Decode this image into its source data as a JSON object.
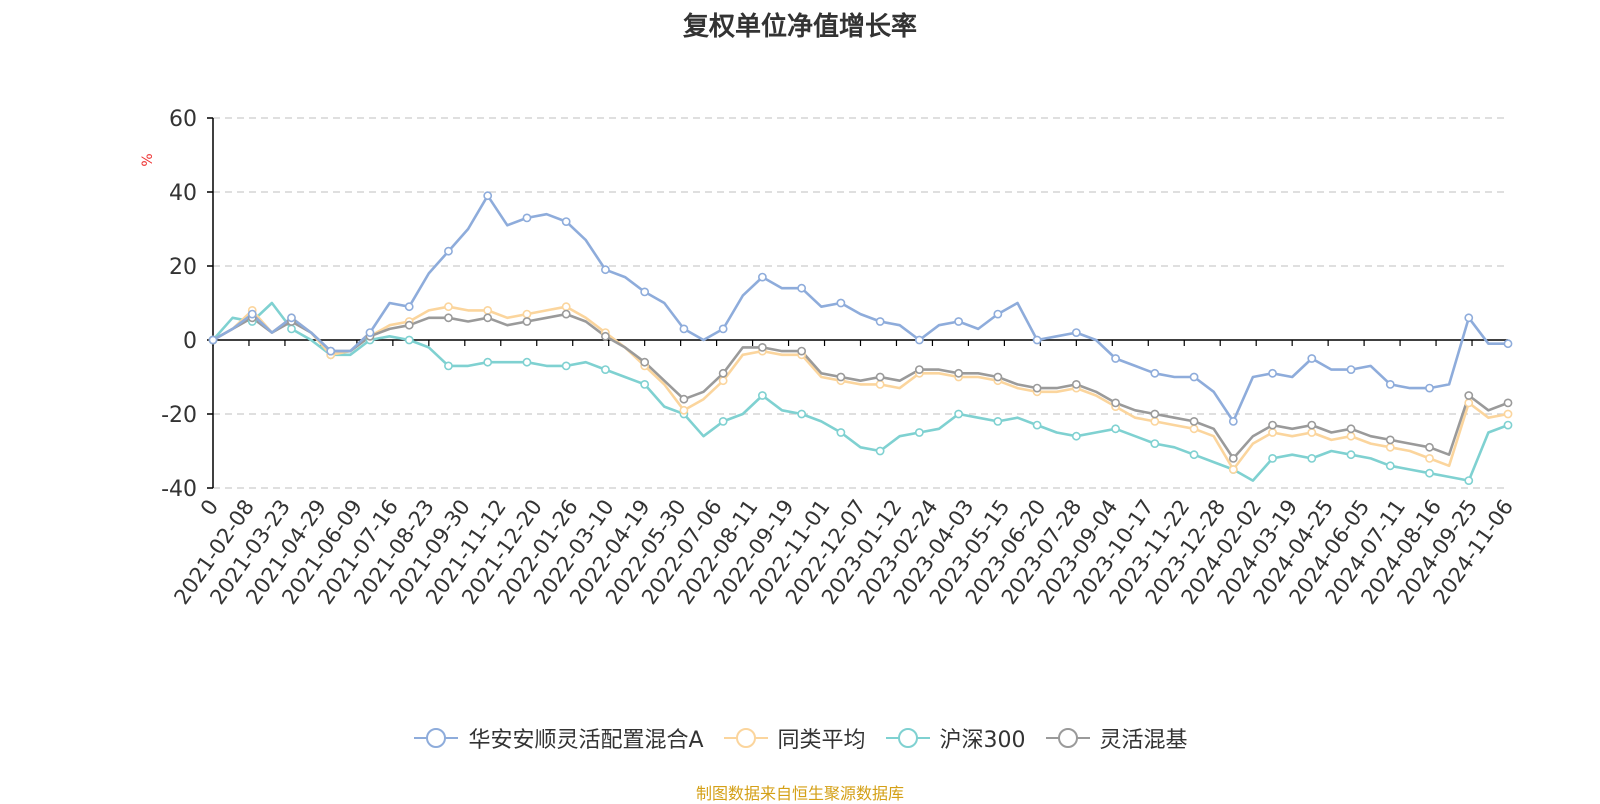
{
  "title": "复权单位净值增长率",
  "source_note": "制图数据来自恒生聚源数据库",
  "colors": {
    "fund": "#8eacdb",
    "peer": "#fbd59d",
    "index": "#7fd1d1",
    "category": "#9a9a9a",
    "unit": "#ee3333",
    "source": "#d4a017",
    "grid": "#cccccc",
    "axis": "#000000"
  },
  "chart_data": {
    "type": "line",
    "title": "复权单位净值增长率",
    "ylabel": "%",
    "xlabel": "",
    "ylim": [
      -40,
      60
    ],
    "yticks": [
      -40,
      -20,
      0,
      20,
      40,
      60
    ],
    "grid": true,
    "legend_position": "bottom-center",
    "x_tick_labels": [
      "0",
      "2021-02-08",
      "2021-03-23",
      "2021-04-29",
      "2021-06-09",
      "2021-07-16",
      "2021-08-23",
      "2021-09-30",
      "2021-11-12",
      "2021-12-20",
      "2022-01-26",
      "2022-03-10",
      "2022-04-19",
      "2022-05-30",
      "2022-07-06",
      "2022-08-11",
      "2022-09-19",
      "2022-11-01",
      "2022-12-07",
      "2023-01-12",
      "2023-02-24",
      "2023-04-03",
      "2023-05-15",
      "2023-06-20",
      "2023-07-28",
      "2023-09-04",
      "2023-10-17",
      "2023-11-22",
      "2023-12-28",
      "2024-02-02",
      "2024-03-19",
      "2024-04-25",
      "2024-06-05",
      "2024-07-11",
      "2024-08-16",
      "2024-09-25",
      "2024-11-06"
    ],
    "series": [
      {
        "name": "华安安顺灵活配置混合A",
        "color_key": "fund",
        "values": [
          0,
          3,
          7,
          2,
          6,
          2,
          -3,
          -3,
          2,
          10,
          9,
          18,
          24,
          30,
          39,
          31,
          33,
          34,
          32,
          27,
          19,
          17,
          13,
          10,
          3,
          0,
          3,
          12,
          17,
          14,
          14,
          9,
          10,
          7,
          5,
          4,
          0,
          4,
          5,
          3,
          7,
          10,
          0,
          1,
          2,
          0,
          -5,
          -7,
          -9,
          -10,
          -10,
          -14,
          -22,
          -10,
          -9,
          -10,
          -5,
          -8,
          -8,
          -7,
          -12,
          -13,
          -13,
          -12,
          6,
          -1,
          -1
        ]
      },
      {
        "name": "同类平均",
        "color_key": "peer",
        "values": [
          0,
          3,
          8,
          2,
          6,
          2,
          -4,
          -3,
          1,
          4,
          5,
          8,
          9,
          8,
          8,
          6,
          7,
          8,
          9,
          6,
          2,
          -2,
          -7,
          -12,
          -19,
          -16,
          -11,
          -4,
          -3,
          -4,
          -4,
          -10,
          -11,
          -12,
          -12,
          -13,
          -9,
          -9,
          -10,
          -10,
          -11,
          -13,
          -14,
          -14,
          -13,
          -15,
          -18,
          -21,
          -22,
          -23,
          -24,
          -26,
          -35,
          -28,
          -25,
          -26,
          -25,
          -27,
          -26,
          -28,
          -29,
          -30,
          -32,
          -34,
          -17,
          -21,
          -20
        ]
      },
      {
        "name": "沪深300",
        "color_key": "index",
        "values": [
          0,
          6,
          5,
          10,
          3,
          0,
          -4,
          -4,
          0,
          1,
          0,
          -2,
          -7,
          -7,
          -6,
          -6,
          -6,
          -7,
          -7,
          -6,
          -8,
          -10,
          -12,
          -18,
          -20,
          -26,
          -22,
          -20,
          -15,
          -19,
          -20,
          -22,
          -25,
          -29,
          -30,
          -26,
          -25,
          -24,
          -20,
          -21,
          -22,
          -21,
          -23,
          -25,
          -26,
          -25,
          -24,
          -26,
          -28,
          -29,
          -31,
          -33,
          -35,
          -38,
          -32,
          -31,
          -32,
          -30,
          -31,
          -32,
          -34,
          -35,
          -36,
          -37,
          -38,
          -25,
          -23
        ]
      },
      {
        "name": "灵活混基",
        "color_key": "category",
        "values": [
          0,
          3,
          6,
          2,
          5,
          2,
          -3,
          -3,
          1,
          3,
          4,
          6,
          6,
          5,
          6,
          4,
          5,
          6,
          7,
          5,
          1,
          -2,
          -6,
          -11,
          -16,
          -14,
          -9,
          -2,
          -2,
          -3,
          -3,
          -9,
          -10,
          -11,
          -10,
          -11,
          -8,
          -8,
          -9,
          -9,
          -10,
          -12,
          -13,
          -13,
          -12,
          -14,
          -17,
          -19,
          -20,
          -21,
          -22,
          -24,
          -32,
          -26,
          -23,
          -24,
          -23,
          -25,
          -24,
          -26,
          -27,
          -28,
          -29,
          -31,
          -15,
          -19,
          -17
        ]
      }
    ]
  },
  "legend": [
    {
      "label": "华安安顺灵活配置混合A",
      "color_key": "fund"
    },
    {
      "label": "同类平均",
      "color_key": "peer"
    },
    {
      "label": "沪深300",
      "color_key": "index"
    },
    {
      "label": "灵活混基",
      "color_key": "category"
    }
  ]
}
